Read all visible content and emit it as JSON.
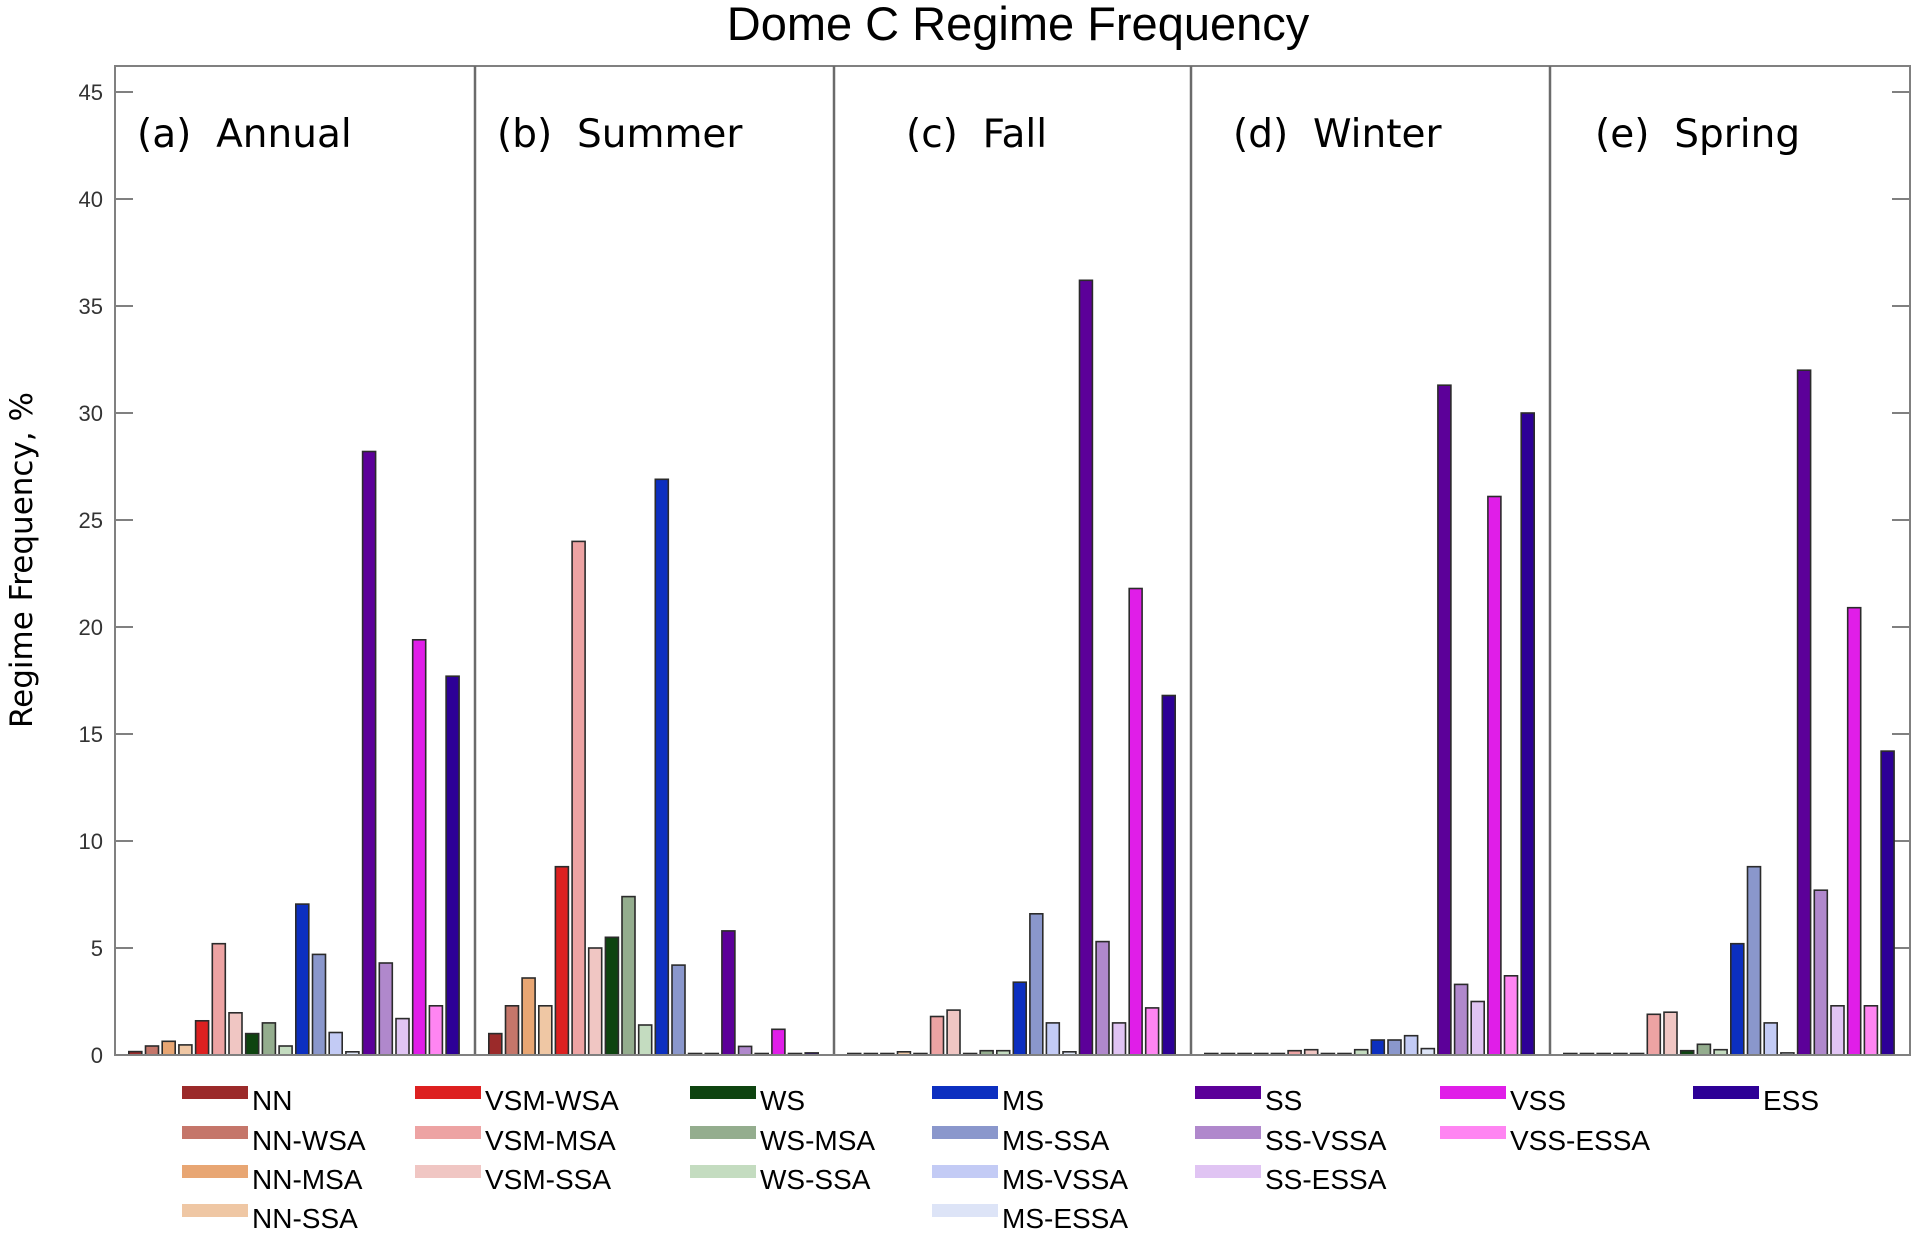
{
  "chart_data": {
    "type": "bar",
    "title": "Dome C Regime Frequency",
    "xlabel": "",
    "ylabel": "Regime Frequency, %",
    "ylim": [
      0,
      46.2
    ],
    "yticks": [
      0,
      5,
      10,
      15,
      20,
      25,
      30,
      35,
      40,
      45
    ],
    "ytick_labels": [
      "0",
      "5",
      "10",
      "15",
      "20",
      "25",
      "30",
      "35",
      "40",
      "45"
    ],
    "grid": false,
    "legend_position": "bottom",
    "categories": [
      "NN",
      "NN-WSA",
      "NN-MSA",
      "NN-SSA",
      "VSM-WSA",
      "VSM-MSA",
      "VSM-SSA",
      "WS",
      "WS-MSA",
      "WS-SSA",
      "MS",
      "MS-SSA",
      "MS-VSSA",
      "MS-ESSA",
      "SS",
      "SS-VSSA",
      "SS-ESSA",
      "VSS",
      "VSS-ESSA",
      "ESS"
    ],
    "colors": [
      "#9b2a2a",
      "#c5766a",
      "#e8a673",
      "#efc7a4",
      "#dd2020",
      "#eda3a3",
      "#f0c6c3",
      "#0e4410",
      "#94ad8e",
      "#c4dcc0",
      "#0c2fc0",
      "#8a97cc",
      "#c3cbf5",
      "#dde4f7",
      "#5c0099",
      "#b088cc",
      "#e0c4f3",
      "#e01ee8",
      "#ff85f2",
      "#2d0096"
    ],
    "panels": [
      {
        "label": "(a)  Annual",
        "values": [
          0.16,
          0.42,
          0.64,
          0.47,
          1.6,
          5.2,
          1.97,
          1.0,
          1.5,
          0.42,
          7.05,
          4.7,
          1.05,
          0.15,
          28.2,
          4.3,
          1.7,
          19.4,
          2.3,
          17.7
        ]
      },
      {
        "label": "(b)  Summer",
        "values": [
          1.0,
          2.3,
          3.6,
          2.3,
          8.8,
          24.0,
          5.0,
          5.5,
          7.4,
          1.4,
          26.9,
          4.2,
          0.0,
          0.0,
          5.8,
          0.4,
          0.0,
          1.2,
          0.0,
          0.1
        ]
      },
      {
        "label": "(c)  Fall",
        "values": [
          0.0,
          0.0,
          0.0,
          0.15,
          0.05,
          1.8,
          2.1,
          0.0,
          0.2,
          0.2,
          3.4,
          6.6,
          1.5,
          0.15,
          36.2,
          5.3,
          1.5,
          21.8,
          2.2,
          16.8
        ]
      },
      {
        "label": "(d)  Winter",
        "values": [
          0.0,
          0.0,
          0.0,
          0.05,
          0.0,
          0.2,
          0.25,
          0.0,
          0.05,
          0.25,
          0.7,
          0.7,
          0.9,
          0.3,
          31.3,
          3.3,
          2.5,
          26.1,
          3.7,
          30.0
        ]
      },
      {
        "label": "(e)  Spring",
        "values": [
          0.0,
          0.0,
          0.0,
          0.0,
          0.0,
          1.9,
          2.0,
          0.2,
          0.5,
          0.25,
          5.2,
          8.8,
          1.5,
          0.1,
          32.0,
          7.7,
          2.3,
          20.9,
          2.3,
          14.2
        ]
      }
    ],
    "legend": {
      "columns": [
        [
          "NN",
          "NN-WSA",
          "NN-MSA",
          "NN-SSA"
        ],
        [
          "VSM-WSA",
          "VSM-MSA",
          "VSM-SSA"
        ],
        [
          "WS",
          "WS-MSA",
          "WS-SSA"
        ],
        [
          "MS",
          "MS-SSA",
          "MS-VSSA",
          "MS-ESSA"
        ],
        [
          "SS",
          "SS-VSSA",
          "SS-ESSA"
        ],
        [
          "VSS",
          "VSS-ESSA"
        ],
        [
          "ESS"
        ]
      ]
    }
  }
}
